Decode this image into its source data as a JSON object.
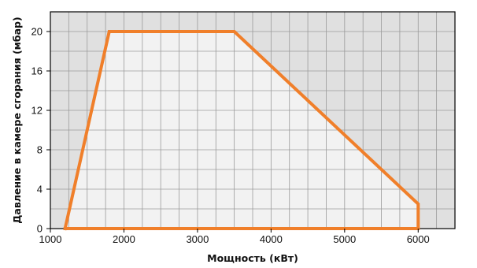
{
  "chart_data": {
    "type": "area",
    "title": "",
    "xlabel": "Мощность (кВт)",
    "ylabel": "Давление в камере сгорания (мбар)",
    "xlim": [
      1000,
      6500
    ],
    "ylim": [
      0,
      22
    ],
    "x_ticks": [
      1000,
      2000,
      3000,
      4000,
      5000,
      6000
    ],
    "x_tick_labels": [
      "1000",
      "2000",
      "3000",
      "4000",
      "5000",
      "6000"
    ],
    "y_ticks": [
      0,
      4,
      8,
      12,
      16,
      20
    ],
    "y_tick_labels": [
      "0",
      "4",
      "8",
      "12",
      "16",
      "20"
    ],
    "grid": true,
    "series": [
      {
        "points": [
          [
            1200,
            0
          ],
          [
            1800,
            20
          ],
          [
            3500,
            20
          ],
          [
            6000,
            2.5
          ],
          [
            6000,
            0
          ],
          [
            1200,
            0
          ]
        ]
      }
    ],
    "colors": {
      "line": "#f07f2a",
      "fill_inside": "#f2f2f2",
      "plot_background": "#e0e0e0",
      "grid": "#9b9b9b",
      "border": "#000000"
    }
  }
}
